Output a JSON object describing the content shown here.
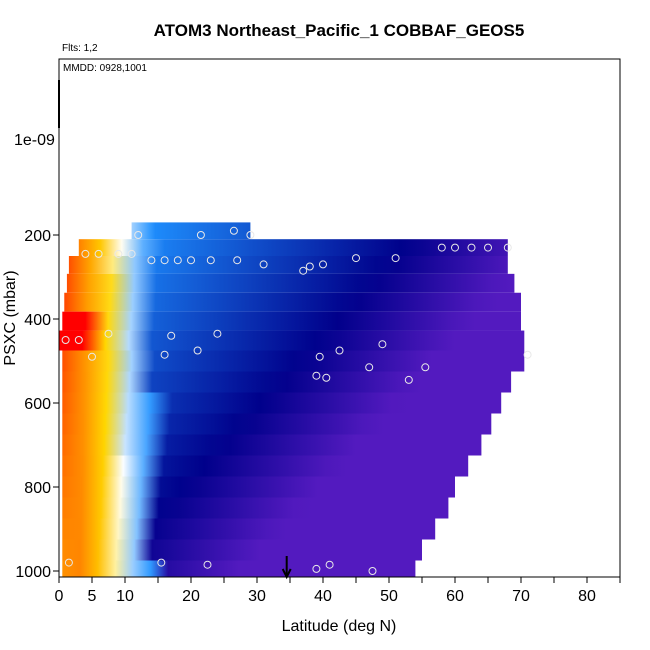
{
  "chart_data": {
    "type": "heatmap",
    "title": "ATOM3 Northeast_Pacific_1 COBBAF_GEOS5",
    "annotations": [
      "Flts: 1,2",
      "MMDD: 0928,1001"
    ],
    "xlabel": "Latitude (deg N)",
    "ylabel": "PSXC (mbar)",
    "xlim": [
      0,
      85
    ],
    "ylim": [
      1000,
      0
    ],
    "x_ticks": [
      0,
      5,
      10,
      20,
      30,
      40,
      50,
      60,
      70,
      80
    ],
    "y_ticks": [
      1000,
      800,
      600,
      400,
      200
    ],
    "y_tick_label_extra": "1e-09",
    "marker_latitude": 34.5,
    "colors": {
      "low": "#8a2be2",
      "mid_low": "#00008b",
      "mid": "#1e90ff",
      "pale": "#ffffff",
      "high": "#ffd700",
      "peak": "#ff0000"
    },
    "rows": [
      {
        "p": 190,
        "lat_start": 11,
        "lat_end": 29
      },
      {
        "p": 230,
        "lat_start": 3,
        "lat_end": 68
      },
      {
        "p": 270,
        "lat_start": 1.5,
        "lat_end": 68
      },
      {
        "p": 315,
        "lat_start": 1.2,
        "lat_end": 69
      },
      {
        "p": 360,
        "lat_start": 0.8,
        "lat_end": 70
      },
      {
        "p": 405,
        "lat_start": 0.5,
        "lat_end": 70
      },
      {
        "p": 450,
        "lat_start": 0,
        "lat_end": 70.5
      },
      {
        "p": 500,
        "lat_start": 0.5,
        "lat_end": 70.5
      },
      {
        "p": 550,
        "lat_start": 0.5,
        "lat_end": 68.5
      },
      {
        "p": 600,
        "lat_start": 0.5,
        "lat_end": 67
      },
      {
        "p": 650,
        "lat_start": 0.5,
        "lat_end": 65.5
      },
      {
        "p": 700,
        "lat_start": 0.5,
        "lat_end": 64
      },
      {
        "p": 750,
        "lat_start": 0.5,
        "lat_end": 62
      },
      {
        "p": 800,
        "lat_start": 0.5,
        "lat_end": 60
      },
      {
        "p": 850,
        "lat_start": 0.5,
        "lat_end": 59
      },
      {
        "p": 900,
        "lat_start": 0.5,
        "lat_end": 57
      },
      {
        "p": 950,
        "lat_start": 0.5,
        "lat_end": 55
      },
      {
        "p": 1000,
        "lat_start": 0.5,
        "lat_end": 54
      }
    ],
    "gradient_stops": [
      [
        0,
        0.02
      ],
      [
        2,
        0.08
      ],
      [
        4,
        0.14
      ],
      [
        6,
        0.22
      ],
      [
        8,
        0.32
      ],
      [
        10,
        0.42
      ],
      [
        12,
        0.52
      ],
      [
        14,
        0.6
      ],
      [
        18,
        0.66
      ],
      [
        25,
        0.72
      ],
      [
        35,
        0.78
      ],
      [
        45,
        0.82
      ],
      [
        55,
        0.87
      ],
      [
        65,
        0.9
      ],
      [
        72,
        0.92
      ]
    ],
    "points": [
      [
        1,
        450
      ],
      [
        3,
        450
      ],
      [
        1.5,
        980
      ],
      [
        4,
        245
      ],
      [
        6,
        245
      ],
      [
        9,
        245
      ],
      [
        11,
        245
      ],
      [
        12,
        200
      ],
      [
        14,
        260
      ],
      [
        16,
        260
      ],
      [
        18,
        260
      ],
      [
        20,
        260
      ],
      [
        21.5,
        200
      ],
      [
        23,
        260
      ],
      [
        26.5,
        190
      ],
      [
        27,
        260
      ],
      [
        29,
        200
      ],
      [
        31,
        270
      ],
      [
        37,
        285
      ],
      [
        38,
        275
      ],
      [
        40,
        270
      ],
      [
        45,
        255
      ],
      [
        51,
        255
      ],
      [
        58,
        230
      ],
      [
        60,
        230
      ],
      [
        62.5,
        230
      ],
      [
        65,
        230
      ],
      [
        68,
        230
      ],
      [
        16,
        485
      ],
      [
        17,
        440
      ],
      [
        21,
        475
      ],
      [
        24,
        435
      ],
      [
        42.5,
        475
      ],
      [
        39.5,
        490
      ],
      [
        39,
        535
      ],
      [
        40.5,
        540
      ],
      [
        47,
        515
      ],
      [
        49,
        460
      ],
      [
        53,
        545
      ],
      [
        55.5,
        515
      ],
      [
        71,
        485
      ],
      [
        5,
        490
      ],
      [
        7.5,
        435
      ],
      [
        15.5,
        980
      ],
      [
        22.5,
        985
      ],
      [
        39,
        995
      ],
      [
        41,
        985
      ],
      [
        47.5,
        1000
      ]
    ]
  }
}
